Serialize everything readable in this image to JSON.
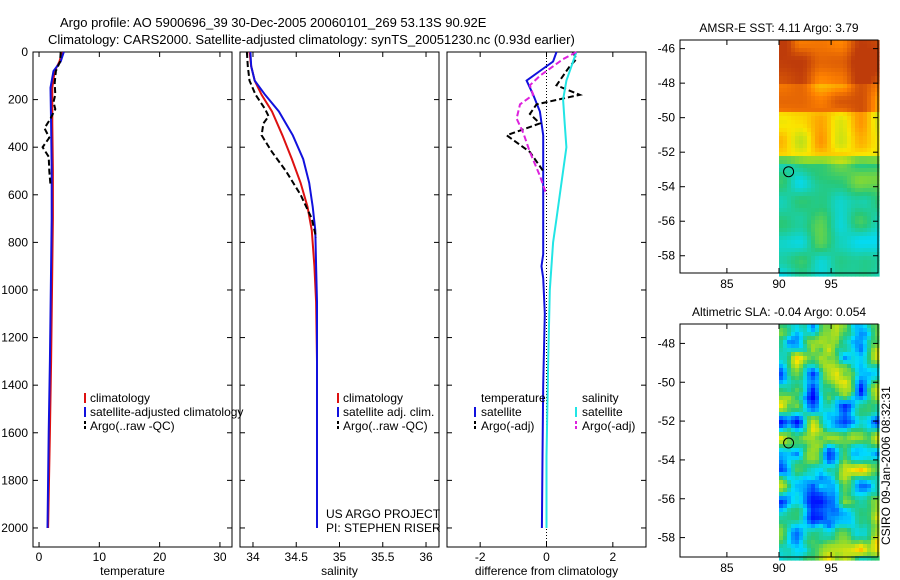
{
  "figure": {
    "title_line1": "Argo profile: AO 5900696_39 30-Dec-2005 20060101_269 53.13S 90.92E",
    "title_line2": "Climatology: CARS2000. Satellite-adjusted climatology: synTS_20051230.nc (0.93d earlier)",
    "credit_project": "US ARGO PROJECT",
    "credit_pi": "PI: STEPHEN RISER",
    "timestamp": "CSIRO 09-Jan-2006 08:32:31"
  },
  "colors": {
    "climatology": "#dd1111",
    "satellite": "#1111dd",
    "argo": "#000000",
    "salinity_satellite": "#22e5e5",
    "salinity_argo": "#dd22dd",
    "profile_marker": "#000000"
  },
  "chart_data": [
    {
      "type": "line",
      "id": "temperature",
      "xlabel": "temperature",
      "ylabel": "",
      "xlim": [
        -1,
        32
      ],
      "ylim": [
        2080,
        0
      ],
      "x_ticks": [
        0,
        10,
        20,
        30
      ],
      "x_tick_labels": [
        "0",
        "10",
        "20",
        "30"
      ],
      "y_ticks": [
        0,
        200,
        400,
        600,
        800,
        1000,
        1200,
        1400,
        1600,
        1800,
        2000
      ],
      "y_tick_labels": [
        "0",
        "200",
        "400",
        "600",
        "800",
        "1000",
        "1200",
        "1400",
        "1600",
        "1800",
        "2000"
      ],
      "legend": [
        "climatology",
        "satellite-adjusted climatology",
        "Argo(..raw -QC)"
      ],
      "series": [
        {
          "name": "climatology",
          "color": "#dd1111",
          "dash": "",
          "x": [
            3.8,
            3.4,
            2.6,
            2.2,
            2.2,
            2.3,
            2.3,
            2.2,
            2.1,
            2.0,
            1.8,
            1.5
          ],
          "y": [
            0,
            40,
            80,
            150,
            300,
            500,
            700,
            900,
            1100,
            1300,
            1600,
            2000
          ]
        },
        {
          "name": "satellite-adjusted climatology",
          "color": "#1111dd",
          "dash": "",
          "x": [
            4.1,
            3.6,
            2.4,
            1.9,
            2.0,
            2.1,
            2.1,
            2.0,
            1.9,
            1.8,
            1.6,
            1.4
          ],
          "y": [
            0,
            40,
            80,
            150,
            300,
            500,
            700,
            900,
            1100,
            1300,
            1600,
            2000
          ]
        },
        {
          "name": "Argo(..raw -QC)",
          "color": "#000000",
          "dash": "6,3",
          "x": [
            3.6,
            3.5,
            2.8,
            2.6,
            2.7,
            2.4,
            2.7,
            1.9,
            0.9,
            1.7,
            0.6,
            1.6,
            1.7,
            1.9
          ],
          "y": [
            0,
            40,
            80,
            130,
            180,
            210,
            240,
            280,
            320,
            360,
            400,
            440,
            500,
            560
          ]
        }
      ]
    },
    {
      "type": "line",
      "id": "salinity",
      "xlabel": "salinity",
      "ylabel": "",
      "xlim": [
        33.85,
        36.15
      ],
      "ylim": [
        2080,
        0
      ],
      "x_ticks": [
        34,
        34.5,
        35,
        35.5,
        36
      ],
      "x_tick_labels": [
        "34",
        "34.5",
        "35",
        "35.5",
        "36"
      ],
      "y_ticks": [
        0,
        200,
        400,
        600,
        800,
        1000,
        1200,
        1400,
        1600,
        1800,
        2000
      ],
      "legend": [
        "climatology",
        "satellite adj. clim.",
        "Argo(..raw -QC)"
      ],
      "series": [
        {
          "name": "climatology",
          "color": "#dd1111",
          "dash": "",
          "x": [
            33.96,
            33.98,
            34.02,
            34.1,
            34.22,
            34.34,
            34.45,
            34.55,
            34.63,
            34.68,
            34.71,
            34.73,
            34.74,
            34.74
          ],
          "y": [
            0,
            60,
            120,
            180,
            250,
            350,
            450,
            550,
            650,
            750,
            900,
            1050,
            1300,
            2000
          ]
        },
        {
          "name": "satellite adj. clim.",
          "color": "#1111dd",
          "dash": "",
          "x": [
            33.97,
            33.98,
            34.02,
            34.14,
            34.3,
            34.46,
            34.58,
            34.65,
            34.69,
            34.72,
            34.73,
            34.74,
            34.74,
            34.74
          ],
          "y": [
            0,
            60,
            120,
            180,
            250,
            350,
            450,
            550,
            650,
            750,
            900,
            1050,
            1300,
            2000
          ]
        },
        {
          "name": "Argo(..raw -QC)",
          "color": "#000000",
          "dash": "6,3",
          "x": [
            33.93,
            33.94,
            33.96,
            34.03,
            34.14,
            34.18,
            34.12,
            34.1,
            34.22,
            34.38,
            34.55,
            34.68,
            34.73
          ],
          "y": [
            0,
            60,
            120,
            180,
            240,
            270,
            300,
            350,
            420,
            500,
            600,
            700,
            780
          ]
        }
      ]
    },
    {
      "type": "line",
      "id": "difference",
      "xlabel": "difference from climatology",
      "ylabel": "",
      "xlim": [
        -3,
        3
      ],
      "ylim": [
        2080,
        0
      ],
      "x_ticks": [
        -2,
        0,
        2
      ],
      "x_tick_labels": [
        "-2",
        "0",
        "2"
      ],
      "y_ticks": [
        0,
        200,
        400,
        600,
        800,
        1000,
        1200,
        1400,
        1600,
        1800,
        2000
      ],
      "legend_headers": [
        "temperature",
        "salinity"
      ],
      "legend": [
        "satellite",
        "Argo(-adj)",
        "satellite",
        "Argo(-adj)"
      ],
      "series": [
        {
          "name": "temperature satellite",
          "color": "#1111dd",
          "dash": "",
          "x": [
            0.3,
            0.2,
            -0.2,
            -0.6,
            -0.4,
            -0.2,
            -0.1,
            -0.1,
            -0.1,
            -0.1,
            -0.15,
            -0.1,
            -0.05,
            -0.1,
            -0.12,
            -0.14
          ],
          "y": [
            0,
            40,
            80,
            120,
            180,
            250,
            350,
            500,
            700,
            850,
            900,
            950,
            1100,
            1400,
            1700,
            2000
          ]
        },
        {
          "name": "temperature Argo(-adj)",
          "color": "#000000",
          "dash": "6,3",
          "x": [
            0.8,
            0.9,
            0.7,
            0.5,
            0.3,
            1.0,
            -0.3,
            -0.5,
            -0.2,
            -1.2,
            -0.5,
            -0.1
          ],
          "y": [
            0,
            30,
            60,
            100,
            140,
            180,
            220,
            260,
            300,
            350,
            420,
            500
          ]
        },
        {
          "name": "salinity satellite",
          "color": "#22e5e5",
          "dash": "",
          "x": [
            0.9,
            0.75,
            0.6,
            0.5,
            0.55,
            0.6,
            0.5,
            0.4,
            0.3,
            0.2,
            0.1,
            0.05,
            0.0,
            0.0
          ],
          "y": [
            0,
            60,
            120,
            200,
            300,
            400,
            500,
            600,
            700,
            800,
            1000,
            1300,
            1700,
            2000
          ]
        },
        {
          "name": "salinity Argo(-adj)",
          "color": "#dd22dd",
          "dash": "6,3",
          "x": [
            0.9,
            0.5,
            0.2,
            -0.2,
            -0.5,
            -0.4,
            -0.8,
            -0.9,
            -0.7,
            -0.5,
            -0.2,
            0.0
          ],
          "y": [
            0,
            30,
            60,
            100,
            140,
            180,
            220,
            280,
            340,
            420,
            520,
            600
          ]
        }
      ]
    },
    {
      "type": "heatmap",
      "id": "amsre_sst",
      "title": "AMSR-E SST: 4.11 Argo: 3.79",
      "xlim": [
        80.5,
        99.5
      ],
      "ylim": [
        -59.0,
        -45.5
      ],
      "x_ticks": [
        85,
        90,
        95
      ],
      "x_tick_labels": [
        "85",
        "90",
        "95"
      ],
      "y_ticks": [
        -46,
        -48,
        -50,
        -52,
        -54,
        -56,
        -58
      ],
      "y_tick_labels": [
        "-46",
        "-48",
        "-50",
        "-52",
        "-54",
        "-56",
        "-58"
      ],
      "data_x_range": [
        90,
        99.5
      ],
      "profile_marker": {
        "lon": 90.92,
        "lat": -53.13
      }
    },
    {
      "type": "heatmap",
      "id": "altimetric_sla",
      "title": "Altimetric SLA: -0.04 Argo: 0.054",
      "xlim": [
        80.5,
        99.5
      ],
      "ylim": [
        -59.0,
        -47.0
      ],
      "x_ticks": [
        85,
        90,
        95
      ],
      "x_tick_labels": [
        "85",
        "90",
        "95"
      ],
      "y_ticks": [
        -48,
        -50,
        -52,
        -54,
        -56,
        -58
      ],
      "y_tick_labels": [
        "-48",
        "-50",
        "-52",
        "-54",
        "-56",
        "-58"
      ],
      "data_x_range": [
        90,
        99.5
      ],
      "profile_marker": {
        "lon": 90.92,
        "lat": -53.13
      }
    }
  ]
}
